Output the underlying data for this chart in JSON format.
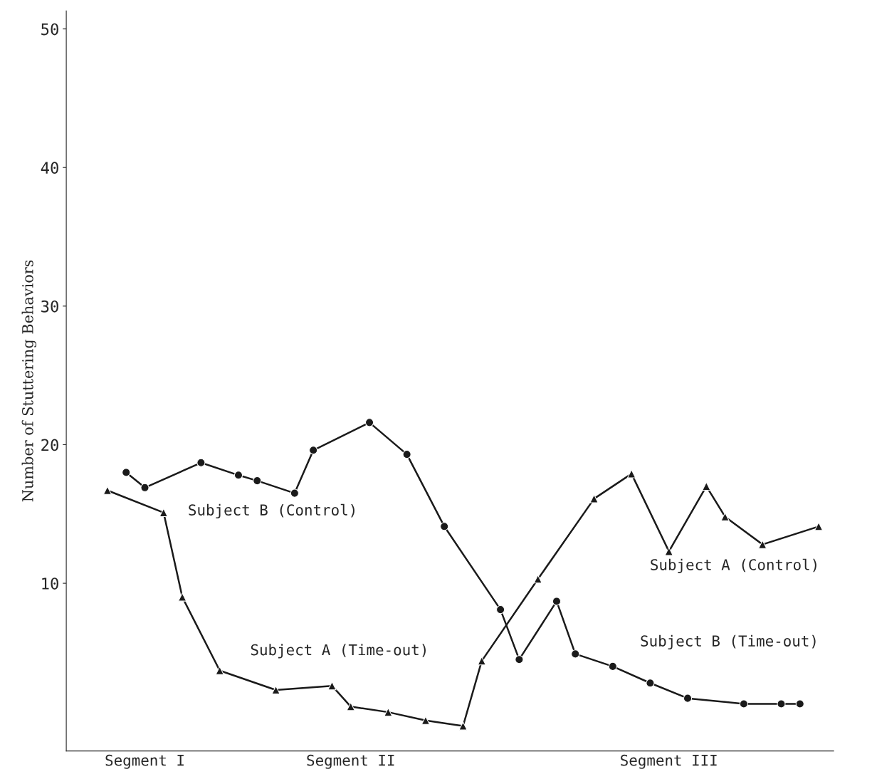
{
  "chart_data": {
    "type": "line",
    "ylabel": "Number of Stuttering Behaviors",
    "categories": [
      null,
      null,
      "Segment I",
      null,
      null,
      null,
      null,
      null,
      null,
      null,
      null,
      null,
      null,
      "Segment II",
      null,
      null,
      null,
      null,
      null,
      null,
      null,
      null,
      null,
      null,
      null,
      null,
      null,
      null,
      null,
      null,
      "Segment III",
      null,
      null,
      null,
      null,
      null,
      null,
      null,
      null
    ],
    "ylim": [
      -2.1,
      51.3
    ],
    "yticks": [
      10,
      20,
      30,
      40,
      50
    ],
    "grid": false,
    "legend": false,
    "series": [
      {
        "color": "#1a1a1a",
        "marker": "triangle",
        "values": [
          16.7,
          null,
          null,
          15.1,
          9.0,
          null,
          3.7,
          null,
          null,
          2.3,
          null,
          null,
          2.6,
          1.1,
          null,
          0.7,
          null,
          0.1,
          null,
          -0.3,
          4.4,
          null,
          null,
          10.3,
          null,
          null,
          16.1,
          null,
          17.9,
          null,
          12.3,
          null,
          17.0,
          14.8,
          null,
          12.8,
          null,
          null,
          14.1
        ]
      },
      {
        "color": "#1a1a1a",
        "marker": "circle",
        "values": [
          null,
          18.0,
          16.9,
          null,
          null,
          18.7,
          null,
          17.8,
          17.4,
          null,
          16.5,
          19.6,
          null,
          null,
          21.6,
          null,
          19.3,
          null,
          14.1,
          null,
          null,
          8.1,
          4.5,
          null,
          8.7,
          4.9,
          null,
          4.0,
          null,
          2.8,
          null,
          1.7,
          null,
          null,
          1.3,
          null,
          1.3,
          1.3,
          null
        ]
      }
    ],
    "annotations": [
      "Subject B (Control)",
      "Subject A (Time-out)",
      "Subject A (Control)",
      "Subject B (Time-out)"
    ]
  }
}
